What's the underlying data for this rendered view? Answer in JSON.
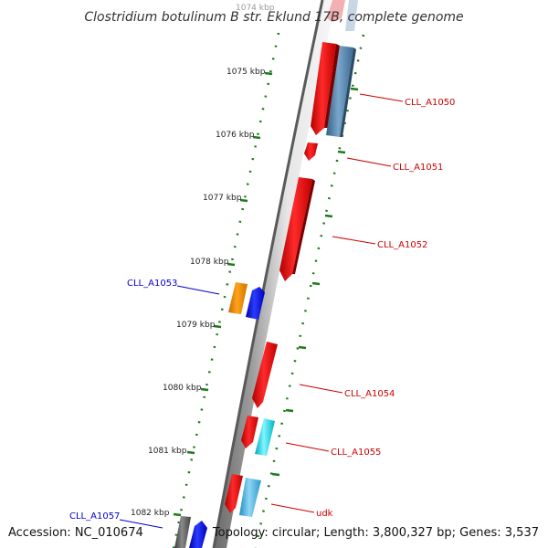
{
  "title": "Clostridium botulinum B str. Eklund 17B, complete genome",
  "footer": {
    "accession": "Accession: NC_010674",
    "topology": "Topology: circular; Length: 3,800,327 bp; Genes: 3,537"
  },
  "ticks": [
    "1074 kbp",
    "1075 kbp",
    "1076 kbp",
    "1077 kbp",
    "1078 kbp",
    "1079 kbp",
    "1080 kbp",
    "1081 kbp",
    "1082 kbp"
  ],
  "genes": [
    {
      "label": "CLL_A1050",
      "color": "#cc0000"
    },
    {
      "label": "CLL_A1051",
      "color": "#cc0000"
    },
    {
      "label": "CLL_A1052",
      "color": "#cc0000"
    },
    {
      "label": "CLL_A1053",
      "color": "#0000cc"
    },
    {
      "label": "CLL_A1054",
      "color": "#cc0000"
    },
    {
      "label": "CLL_A1055",
      "color": "#cc0000"
    },
    {
      "label": "udk",
      "color": "#cc0000"
    },
    {
      "label": "CLL_A1057",
      "color": "#0000cc"
    }
  ]
}
